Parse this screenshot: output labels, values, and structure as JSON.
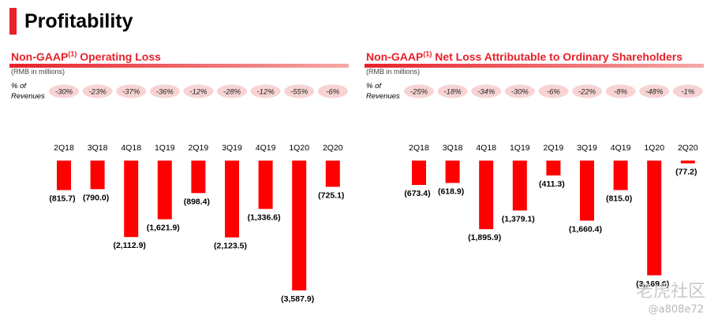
{
  "page": {
    "title": "Profitability"
  },
  "panels": [
    {
      "title_prefix": "Non-GAAP",
      "title_sup": "(1)",
      "title_suffix": " Operating Loss",
      "unit": "(RMB in millions)",
      "pct_label_1": "% of",
      "pct_label_2": "Revenues"
    },
    {
      "title_prefix": "Non-GAAP",
      "title_sup": "(1)",
      "title_suffix": " Net Loss Attributable to Ordinary Shareholders",
      "unit": "(RMB in millions)",
      "pct_label_1": "% of",
      "pct_label_2": "Revenues"
    }
  ],
  "watermark": {
    "text": "老虎社区",
    "sub": "@a808e72"
  },
  "colors": {
    "bar": "#ff0000",
    "accent": "#e8202a",
    "pill": "#f7d3d3"
  },
  "chart_data": [
    {
      "type": "bar",
      "categories": [
        "2Q18",
        "3Q18",
        "4Q18",
        "1Q19",
        "2Q19",
        "3Q19",
        "4Q19",
        "1Q20",
        "2Q20"
      ],
      "values": [
        -815.7,
        -790.0,
        -2112.9,
        -1621.9,
        -898.4,
        -2123.5,
        -1336.6,
        -3587.9,
        -725.1
      ],
      "value_labels": [
        "(815.7)",
        "(790.0)",
        "(2,112.9)",
        "(1,621.9)",
        "(898.4)",
        "(2,123.5)",
        "(1,336.6)",
        "(3,587.9)",
        "(725.1)"
      ],
      "pct_of_revenues": [
        "-30%",
        "-23%",
        "-37%",
        "-36%",
        "-12%",
        "-28%",
        "-12%",
        "-55%",
        "-6%"
      ]
    },
    {
      "type": "bar",
      "categories": [
        "2Q18",
        "3Q18",
        "4Q18",
        "1Q19",
        "2Q19",
        "3Q19",
        "4Q19",
        "1Q20",
        "2Q20"
      ],
      "values": [
        -673.4,
        -618.9,
        -1895.9,
        -1379.1,
        -411.3,
        -1660.4,
        -815.0,
        -3169.6,
        -77.2
      ],
      "value_labels": [
        "(673.4)",
        "(618.9)",
        "(1,895.9)",
        "(1,379.1)",
        "(411.3)",
        "(1,660.4)",
        "(815.0)",
        "(3,169.6)",
        "(77.2)"
      ],
      "pct_of_revenues": [
        "-25%",
        "-18%",
        "-34%",
        "-30%",
        "-6%",
        "-22%",
        "-8%",
        "-48%",
        "-1%"
      ]
    }
  ]
}
